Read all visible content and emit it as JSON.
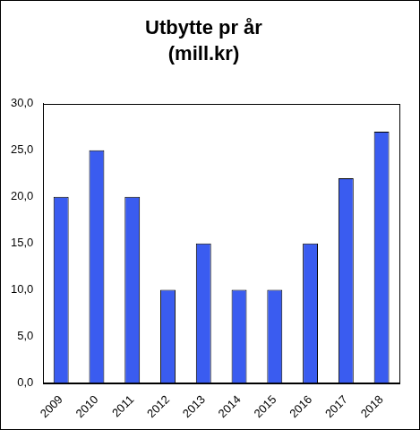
{
  "chart_data": {
    "type": "bar",
    "title": "Utbytte pr år",
    "subtitle": "(mill.kr)",
    "categories": [
      "2009",
      "2010",
      "2011",
      "2012",
      "2013",
      "2014",
      "2015",
      "2016",
      "2017",
      "2018"
    ],
    "values": [
      20,
      25,
      20,
      10,
      15,
      10,
      10,
      15,
      22,
      27
    ],
    "color": "#3a5cf0",
    "ylim": [
      0,
      30
    ],
    "yticks": [
      {
        "value": 0,
        "label": "0,0"
      },
      {
        "value": 5,
        "label": "5,0"
      },
      {
        "value": 10,
        "label": "10,0"
      },
      {
        "value": 15,
        "label": "15,0"
      },
      {
        "value": 20,
        "label": "20,0"
      },
      {
        "value": 25,
        "label": "25,0"
      },
      {
        "value": 30,
        "label": "30,0"
      }
    ],
    "grid": false
  }
}
